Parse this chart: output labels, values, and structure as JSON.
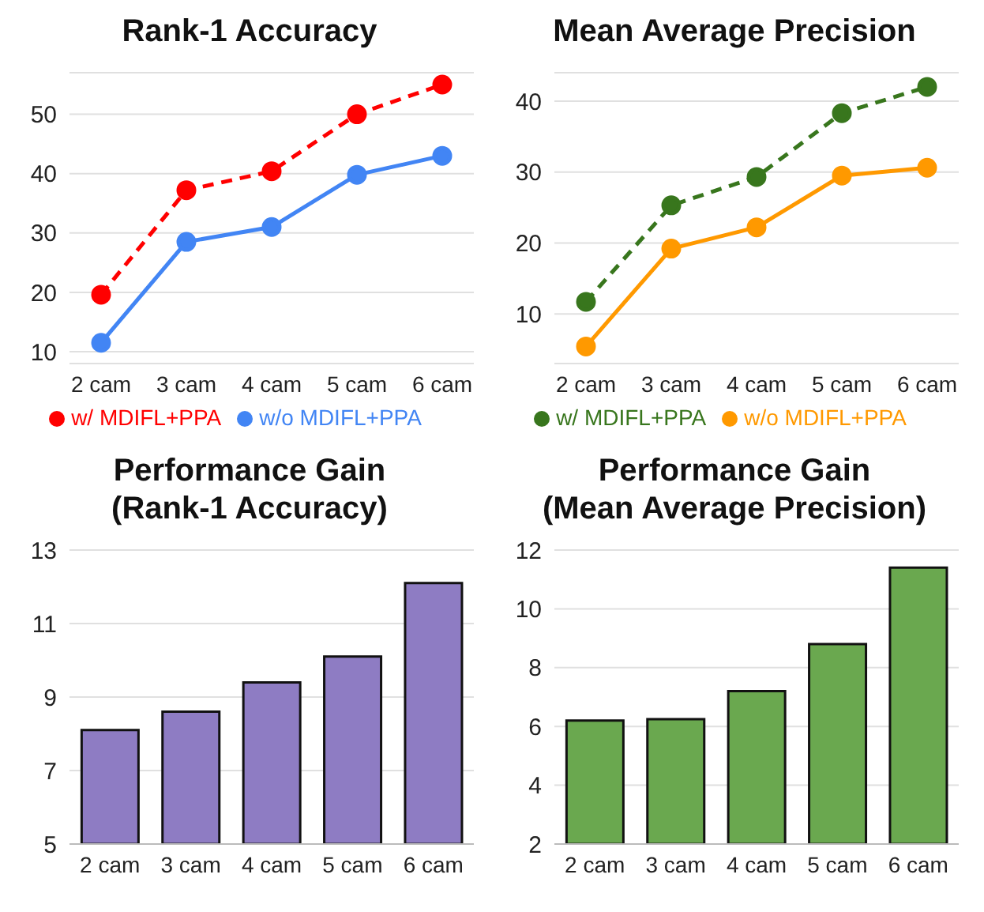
{
  "chart_data": [
    {
      "type": "line",
      "title": "Rank-1 Accuracy",
      "categories": [
        "2 cam",
        "3 cam",
        "4 cam",
        "5 cam",
        "6 cam"
      ],
      "ylim": [
        8,
        57
      ],
      "yticks": [
        10,
        20,
        30,
        40,
        50
      ],
      "grid": "y",
      "legend": "bottom",
      "marker": "circle",
      "series": [
        {
          "name": "w/o MDIFL+PPA",
          "color": "#4285f4",
          "line_style": "solid",
          "values": [
            11.5,
            28.5,
            31,
            39.8,
            43
          ]
        },
        {
          "name": "w/ MDIFL+PPA",
          "color": "#ff0000",
          "line_style": "dashed",
          "values": [
            19.6,
            37.2,
            40.4,
            50,
            55
          ]
        }
      ]
    },
    {
      "type": "line",
      "title": "Mean Average Precision",
      "categories": [
        "2 cam",
        "3 cam",
        "4 cam",
        "5 cam",
        "6 cam"
      ],
      "ylim": [
        3,
        44
      ],
      "yticks": [
        10,
        20,
        30,
        40
      ],
      "grid": "y",
      "legend": "bottom",
      "marker": "circle",
      "series": [
        {
          "name": "w/o MDIFL+PPA",
          "color": "#ff9900",
          "line_style": "solid",
          "values": [
            5.4,
            19.2,
            22.2,
            29.5,
            30.6
          ]
        },
        {
          "name": "w/ MDIFL+PPA",
          "color": "#38761d",
          "line_style": "dashed",
          "values": [
            11.7,
            25.3,
            29.3,
            38.3,
            42
          ]
        }
      ]
    },
    {
      "type": "bar",
      "title": "Performance Gain\n(Rank-1 Accuracy)",
      "categories": [
        "2 cam",
        "3 cam",
        "4 cam",
        "5 cam",
        "6 cam"
      ],
      "ylim": [
        5,
        13
      ],
      "yticks": [
        5,
        7,
        9,
        11,
        13
      ],
      "grid": "y",
      "series": [
        {
          "color": "#8e7cc3",
          "values": [
            8.1,
            8.6,
            9.4,
            10.1,
            12.1
          ]
        }
      ]
    },
    {
      "type": "bar",
      "title": "Performance Gain\n(Mean Average Precision)",
      "categories": [
        "2 cam",
        "3 cam",
        "4 cam",
        "5 cam",
        "6 cam"
      ],
      "ylim": [
        2,
        12
      ],
      "yticks": [
        2,
        4,
        6,
        8,
        10,
        12
      ],
      "grid": "y",
      "series": [
        {
          "color": "#6aa84f",
          "values": [
            6.2,
            6.25,
            7.2,
            8.8,
            11.4
          ]
        }
      ]
    }
  ]
}
